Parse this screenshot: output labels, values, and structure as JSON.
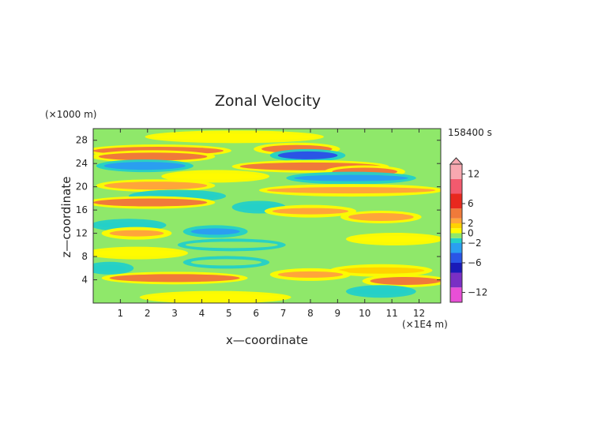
{
  "chart_data": {
    "type": "heatmap",
    "title": "Zonal Velocity",
    "xlabel": "x—coordinate",
    "ylabel": "z—coordinate",
    "x_unit": "(×1E4 m)",
    "y_unit": "(×1000 m)",
    "time_label": "158400 s",
    "x_ticks": [
      "1",
      "2",
      "3",
      "4",
      "5",
      "6",
      "7",
      "8",
      "9",
      "10",
      "11",
      "12"
    ],
    "y_ticks": [
      "4",
      "8",
      "12",
      "16",
      "20",
      "24",
      "28"
    ],
    "xlim": [
      0,
      12.8
    ],
    "ylim": [
      0,
      30
    ],
    "colorbar": {
      "tick_labels": [
        "12",
        "6",
        "2",
        "0",
        "−2",
        "−6",
        "−12"
      ],
      "tick_values": [
        12,
        6,
        2,
        0,
        -2,
        -6,
        -12
      ],
      "range": [
        -14,
        14
      ],
      "extend_top": true,
      "colors": [
        {
          "from": -14,
          "to": -11,
          "color": "#e84fd6"
        },
        {
          "from": -11,
          "to": -8,
          "color": "#7a2fc4"
        },
        {
          "from": -8,
          "to": -6,
          "color": "#1a1ab8"
        },
        {
          "from": -6,
          "to": -4,
          "color": "#2a55e6"
        },
        {
          "from": -4,
          "to": -2,
          "color": "#2a9ff0"
        },
        {
          "from": -2,
          "to": -1,
          "color": "#24d0c8"
        },
        {
          "from": -1,
          "to": 0,
          "color": "#8fe86a"
        },
        {
          "from": 0,
          "to": 1,
          "color": "#fffb00"
        },
        {
          "from": 1,
          "to": 2,
          "color": "#ffd200"
        },
        {
          "from": 2,
          "to": 3,
          "color": "#ffa53a"
        },
        {
          "from": 3,
          "to": 5,
          "color": "#f07a3a"
        },
        {
          "from": 5,
          "to": 8,
          "color": "#e8281e"
        },
        {
          "from": 8,
          "to": 11,
          "color": "#f25a6e"
        },
        {
          "from": 11,
          "to": 14,
          "color": "#f8a8b0"
        }
      ]
    },
    "background_value": -0.5,
    "bands": [
      {
        "z": 26.2,
        "x0": 0.0,
        "x1": 4.8,
        "u": 3.5
      },
      {
        "z": 25.2,
        "x0": 0.2,
        "x1": 4.2,
        "u": 3.8
      },
      {
        "z": 26.5,
        "x0": 6.2,
        "x1": 8.8,
        "u": 3.2
      },
      {
        "z": 25.4,
        "x0": 6.8,
        "x1": 9.0,
        "u": -4.5
      },
      {
        "z": 23.5,
        "x0": 5.4,
        "x1": 10.6,
        "u": 4.0
      },
      {
        "z": 22.6,
        "x0": 8.8,
        "x1": 11.2,
        "u": 3.0
      },
      {
        "z": 23.6,
        "x0": 0.4,
        "x1": 3.4,
        "u": -3.0
      },
      {
        "z": 21.8,
        "x0": 2.8,
        "x1": 6.2,
        "u": 0.5
      },
      {
        "z": 21.5,
        "x0": 7.4,
        "x1": 11.6,
        "u": -2.2
      },
      {
        "z": 20.2,
        "x0": 0.4,
        "x1": 4.2,
        "u": 2.6
      },
      {
        "z": 19.4,
        "x0": 6.4,
        "x1": 12.6,
        "u": 2.4
      },
      {
        "z": 18.4,
        "x0": 1.6,
        "x1": 4.6,
        "u": -2.0
      },
      {
        "z": 17.3,
        "x0": 0.0,
        "x1": 4.2,
        "u": 3.0
      },
      {
        "z": 16.5,
        "x0": 5.4,
        "x1": 6.8,
        "u": -1.5
      },
      {
        "z": 15.8,
        "x0": 6.6,
        "x1": 9.4,
        "u": 2.2
      },
      {
        "z": 14.8,
        "x0": 9.4,
        "x1": 11.8,
        "u": 2.6
      },
      {
        "z": 13.4,
        "x0": 0.2,
        "x1": 2.4,
        "u": -1.6
      },
      {
        "z": 12.3,
        "x0": 3.6,
        "x1": 5.4,
        "u": -2.4
      },
      {
        "z": 12.0,
        "x0": 0.6,
        "x1": 2.6,
        "u": 2.5
      },
      {
        "z": 11.0,
        "x0": 9.6,
        "x1": 12.6,
        "u": 0.6
      },
      {
        "z": 10.0,
        "x0": 3.4,
        "x1": 6.8,
        "u": -1.0
      },
      {
        "z": 8.6,
        "x0": 0.0,
        "x1": 3.2,
        "u": 0.6
      },
      {
        "z": 7.0,
        "x0": 3.6,
        "x1": 6.2,
        "u": -0.8
      },
      {
        "z": 6.0,
        "x0": 0.0,
        "x1": 1.2,
        "u": -2.0
      },
      {
        "z": 5.6,
        "x0": 9.0,
        "x1": 12.2,
        "u": 1.0
      },
      {
        "z": 4.3,
        "x0": 0.6,
        "x1": 5.4,
        "u": 3.2
      },
      {
        "z": 3.8,
        "x0": 10.2,
        "x1": 12.8,
        "u": 3.0
      },
      {
        "z": 4.9,
        "x0": 6.8,
        "x1": 9.2,
        "u": 2.2
      },
      {
        "z": 2.0,
        "x0": 9.6,
        "x1": 11.6,
        "u": -1.5
      },
      {
        "z": 1.0,
        "x0": 2.0,
        "x1": 7.0,
        "u": 0.4
      },
      {
        "z": 28.6,
        "x0": 2.2,
        "x1": 8.2,
        "u": 0.6
      }
    ]
  }
}
